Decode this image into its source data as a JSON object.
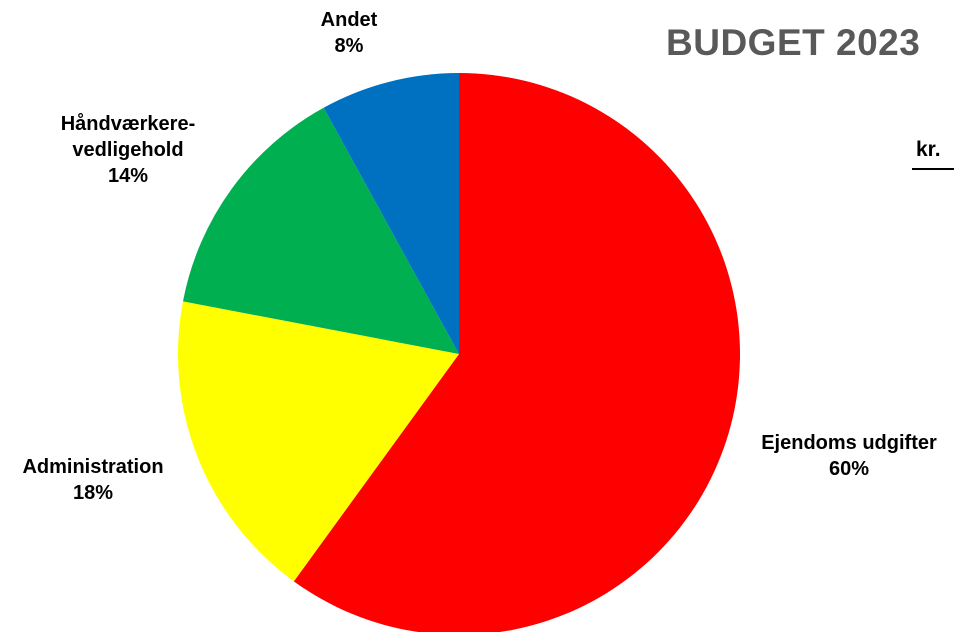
{
  "chart_data": {
    "type": "pie",
    "title": "BUDGET 2023",
    "unit": "kr.",
    "slices": [
      {
        "name": "Ejendoms udgifter",
        "value": 60,
        "label_lines": [
          "Ejendoms udgifter"
        ],
        "pct_label": "60%",
        "color": "#FF0000"
      },
      {
        "name": "Administration",
        "value": 18,
        "label_lines": [
          "Administration"
        ],
        "pct_label": "18%",
        "color": "#FFFF00"
      },
      {
        "name": "Håndværkere-vedligehold",
        "value": 14,
        "label_lines": [
          "Håndværkere-",
          "vedligehold"
        ],
        "pct_label": "14%",
        "color": "#00B050"
      },
      {
        "name": "Andet",
        "value": 8,
        "label_lines": [
          "Andet"
        ],
        "pct_label": "8%",
        "color": "#0070C0"
      }
    ],
    "start_angle": "12 o'clock",
    "direction": "clockwise",
    "legend": "none"
  }
}
